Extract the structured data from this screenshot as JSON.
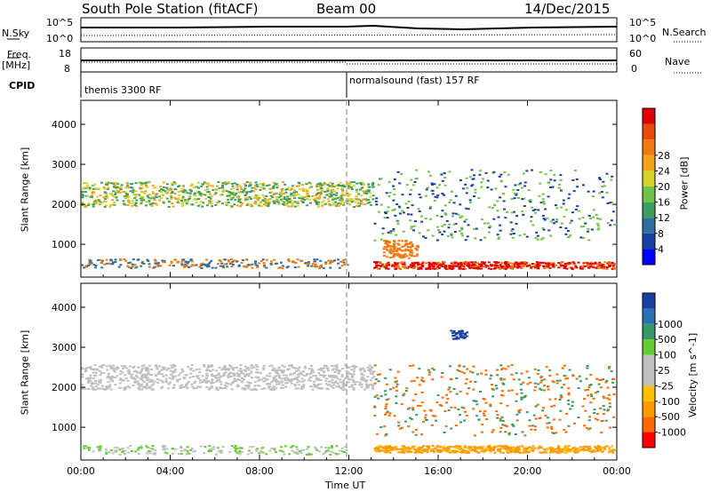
{
  "header": {
    "station": "South Pole Station (fitACF)",
    "beam": "Beam 00",
    "date": "14/Dec/2015"
  },
  "top_panels": {
    "nsky_label": "N.Sky",
    "nsearch_label": "N.Search",
    "nsky_ticks": [
      "10^5",
      "10^0"
    ],
    "nsearch_ticks": [
      "10^5",
      "10^0"
    ],
    "freq_label": "Freq.",
    "freq_unit": "[MHz]",
    "freq_ticks": [
      "18",
      "8"
    ],
    "nave_label": "Nave",
    "nave_ticks": [
      "60",
      "0"
    ],
    "cpid_label": "CPID",
    "cpid_segments": [
      "themis 3300 RF",
      "normalsound (fast) 157 RF"
    ]
  },
  "colors": {
    "power_scale": [
      "#0000ff",
      "#1a3fa3",
      "#2e6fa0",
      "#3c9f60",
      "#72c24a",
      "#d6d22a",
      "#f5a21c",
      "#f07a12",
      "#e84a0e",
      "#e00000"
    ],
    "velocity_scale": [
      "#ff0000",
      "#ff6a00",
      "#ff9a00",
      "#ffc000",
      "#bfbfbf",
      "#bfbfbf",
      "#66cc33",
      "#339966",
      "#2a6fb0",
      "#1a3fa3"
    ]
  },
  "chart_data": [
    {
      "type": "heatmap",
      "title": "",
      "xlabel": "",
      "ylabel": "Slant Range [km]",
      "x_ticks": [
        "00:00",
        "04:00",
        "08:00",
        "12:00",
        "16:00",
        "20:00",
        "00:00"
      ],
      "y_ticks": [
        "1000",
        "2000",
        "3000",
        "4000"
      ],
      "xlim": [
        0,
        24
      ],
      "ylim": [
        180,
        4600
      ],
      "colorbar": {
        "label": "Power [dB]",
        "ticks": [
          "4",
          "8",
          "12",
          "16",
          "20",
          "24",
          "28"
        ]
      }
    },
    {
      "type": "heatmap",
      "title": "",
      "xlabel": "Time UT",
      "ylabel": "Slant Range [km]",
      "x_ticks": [
        "00:00",
        "04:00",
        "08:00",
        "12:00",
        "16:00",
        "20:00",
        "00:00"
      ],
      "y_ticks": [
        "1000",
        "2000",
        "3000",
        "4000"
      ],
      "xlim": [
        0,
        24
      ],
      "ylim": [
        180,
        4600
      ],
      "colorbar": {
        "label": "Velocity [m s^-1]",
        "ticks": [
          "1000",
          "500",
          "100",
          "25",
          "-25",
          "-100",
          "-500",
          "-1000"
        ]
      }
    }
  ]
}
